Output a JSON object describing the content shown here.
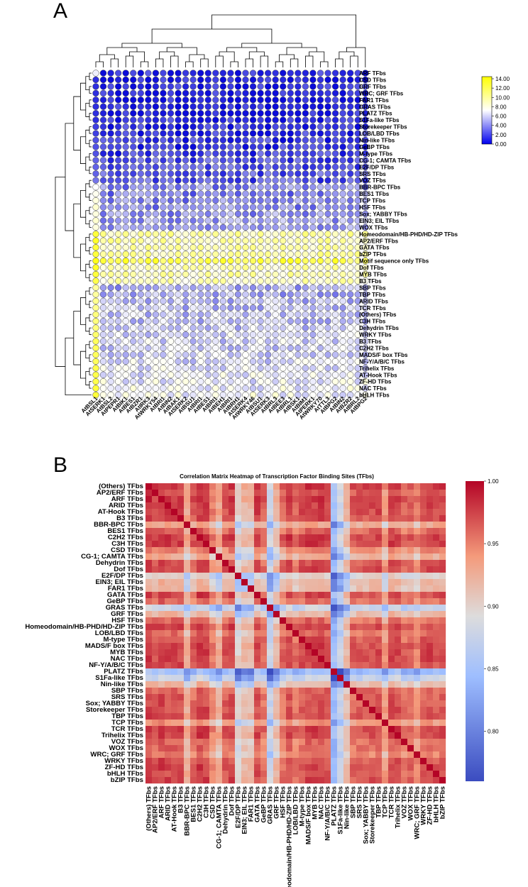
{
  "chart_data": [
    {
      "type": "heatmap",
      "panel_label": "A",
      "style": "bubble-matrix-with-dendrograms",
      "columns": [
        "AtBSL1",
        "AtSERK1",
        "AtBSL2",
        "AtPEPR1",
        "AtBIK1",
        "AtBES1",
        "AtBZR1",
        "AtIRK3",
        "AtWRKY54",
        "AtBRI1",
        "AtBIN2",
        "AtBAK1",
        "AtSERK2",
        "AtBSU1",
        "AtBRI1",
        "AtBES1",
        "AtBRI1",
        "AtBEH1",
        "AtBRI1",
        "AtBRH1",
        "AtSERK4",
        "AtWRKY46",
        "AtBSU1",
        "AtSERK3",
        "AtBRL3",
        "AtBEE3",
        "AtBRL1",
        "AtBSK1",
        "AtBIM1",
        "AtPERK1",
        "AtWRKY70",
        "AtTTL3",
        "AtBPG2",
        "AtBIN2",
        "AtBZR2",
        "AtBRL2",
        "AtBPG2"
      ],
      "rows": [
        "ARF TFbs",
        "CSD TFbs",
        "GRF TFbs",
        "WRC; GRF TFbs",
        "FAR1 TFbs",
        "GRAS TFbs",
        "PLATZ TFbs",
        "S1Fa-like TFbs",
        "Storekeeper TFbs",
        "LOB/LBD TFbs",
        "Nin-like TFbs",
        "GeBP TFbs",
        "M-type TFbs",
        "CG-1; CAMTA TFbs",
        "E2F/DP TFbs",
        "SRS TFbs",
        "VOZ TFbs",
        "BBR-BPC TFbs",
        "BES1 TFbs",
        "TCP TFbs",
        "HSF TFbs",
        "Sox; YABBY TFbs",
        "EIN3; EIL TFbs",
        "WOX TFbs",
        "Homeodomain/HB-PHD/HD-ZIP TFbs",
        "AP2/ERF TFbs",
        "GATA TFbs",
        "bZIP TFbs",
        "Motif sequence only TFbs",
        "Dof TFbs",
        "MYB TFbs",
        "B3 TFbs",
        "SBP TFbs",
        "TBP TFbs",
        "ARID TFbs",
        "TCR TFbs",
        "(Others) TFbs",
        "C3H TFbs",
        "Dehydrin TFbs",
        "WRKY TFbs",
        "B3 TFbs",
        "C2H2 TFbs",
        "MADS/F box TFbs",
        "NF-Y/A/B/C TFbs",
        "Trihelix TFbs",
        "AT-Hook TFbs",
        "ZF-HD TFbs",
        "NAC TFbs",
        "bHLH TFbs"
      ],
      "row_levels": [
        0.8,
        0.5,
        0.7,
        0.6,
        0.4,
        0.5,
        0.4,
        0.9,
        1.0,
        1.1,
        1.3,
        1.3,
        1.6,
        2.0,
        2.0,
        2.1,
        2.1,
        3.6,
        3.3,
        3.6,
        3.7,
        4.0,
        4.2,
        4.0,
        9.6,
        9.4,
        9.6,
        9.7,
        12.2,
        9.4,
        9.3,
        8.9,
        4.6,
        4.6,
        5.0,
        5.2,
        5.3,
        5.2,
        5.5,
        6.0,
        5.8,
        5.7,
        5.8,
        6.0,
        6.2,
        6.4,
        6.6,
        6.8,
        7.0
      ],
      "first_column_values": [
        6.5,
        1.0,
        1.0,
        1.0,
        1.0,
        1.0,
        1.0,
        1.0,
        1.5,
        1.5,
        2.0,
        2.0,
        2.0,
        2.5,
        2.5,
        2.5,
        3.0,
        7.0,
        7.5,
        8.0,
        8.5,
        8.0,
        8.5,
        8.0,
        13.0,
        13.5,
        13.0,
        13.0,
        14.0,
        13.5,
        13.0,
        12.5,
        10.0,
        10.0,
        10.5,
        10.5,
        11.0,
        11.0,
        11.0,
        11.5,
        12.0,
        12.0,
        12.0,
        12.0,
        12.5,
        12.5,
        12.5,
        13.0,
        13.0
      ],
      "colorbar": {
        "min": 0,
        "max": 14,
        "ticks": [
          "14.00",
          "12.00",
          "10.00",
          "8.00",
          "6.00",
          "4.00",
          "2.00",
          "0.00"
        ],
        "colors": [
          "#0000ee",
          "#ffffff",
          "#ffff00"
        ]
      }
    },
    {
      "type": "heatmap",
      "panel_label": "B",
      "title": "Correlation Matrix Heatmap of Transcription Factor Binding Sites (TFbs)",
      "labels": [
        "(Others) TFbs",
        "AP2/ERF TFbs",
        "ARF TFbs",
        "ARID TFbs",
        "AT-Hook TFbs",
        "B3 TFbs",
        "BBR-BPC TFbs",
        "BES1 TFbs",
        "C2H2 TFbs",
        "C3H TFbs",
        "CSD TFbs",
        "CG-1; CAMTA TFbs",
        "Dehydrin TFbs",
        "Dof TFbs",
        "E2F/DP TFbs",
        "EIN3; EIL TFbs",
        "FAR1 TFbs",
        "GATA TFbs",
        "GeBP TFbs",
        "GRAS TFbs",
        "GRF TFbs",
        "HSF TFbs",
        "Homeodomain/HB-PHD/HD-ZIP TFbs",
        "LOB/LBD TFbs",
        "M-type TFbs",
        "MADS/F box TFbs",
        "MYB TFbs",
        "NAC TFbs",
        "NF-Y/A/B/C TFbs",
        "PLATZ TFbs",
        "S1Fa-like TFbs",
        "Nin-like TFbs",
        "SBP TFbs",
        "SRS TFbs",
        "Sox; YABBY TFbs",
        "Storekeeper TFbs",
        "TBP TFbs",
        "TCP TFbs",
        "TCR TFbs",
        "Trihelix TFbs",
        "VOZ TFbs",
        "WOX TFbs",
        "WRC; GRF TFbs",
        "WRKY TFbs",
        "ZF-HD TFbs",
        "bHLH TFbs",
        "bZIP TFbs"
      ],
      "row_offsets": [
        0.0,
        -0.008,
        0.0,
        -0.004,
        -0.004,
        -0.006,
        -0.05,
        -0.016,
        0.0,
        -0.002,
        -0.03,
        -0.05,
        -0.01,
        -0.004,
        -0.08,
        -0.06,
        -0.06,
        -0.006,
        -0.02,
        -0.1,
        -0.06,
        -0.02,
        -0.004,
        -0.02,
        -0.01,
        -0.004,
        -0.004,
        -0.004,
        -0.006,
        -0.13,
        -0.1,
        -0.06,
        -0.016,
        -0.012,
        -0.012,
        -0.01,
        -0.008,
        -0.04,
        -0.004,
        -0.004,
        -0.02,
        -0.016,
        -0.03,
        -0.01,
        -0.006,
        -0.01,
        -0.006
      ],
      "col_offsets": [
        0.0,
        -0.008,
        0.0,
        -0.004,
        -0.004,
        -0.006,
        -0.05,
        -0.016,
        0.0,
        -0.002,
        -0.03,
        -0.05,
        -0.01,
        -0.004,
        -0.08,
        -0.06,
        -0.06,
        -0.006,
        -0.02,
        -0.1,
        -0.06,
        -0.02,
        -0.004,
        -0.02,
        -0.01,
        -0.004,
        -0.004,
        -0.004,
        -0.006,
        -0.13,
        -0.1,
        -0.06,
        -0.016,
        -0.012,
        -0.012,
        -0.01,
        -0.008,
        -0.04,
        -0.004,
        -0.004,
        -0.02,
        -0.016,
        -0.03,
        -0.01,
        -0.006,
        -0.01,
        -0.006
      ],
      "base_value": 0.985,
      "colorbar": {
        "min": 0.76,
        "max": 1.0,
        "ticks": [
          "1.00",
          "0.95",
          "0.90",
          "0.85",
          "0.80"
        ],
        "tick_values": [
          1.0,
          0.95,
          0.9,
          0.85,
          0.8
        ]
      }
    }
  ]
}
